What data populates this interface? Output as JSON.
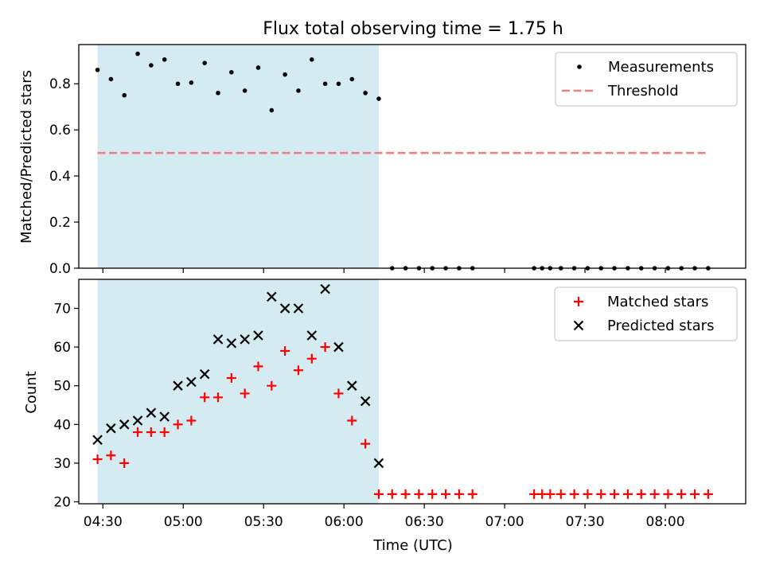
{
  "chart_data": [
    {
      "type": "scatter",
      "title": "Flux total observing time = 1.75 h",
      "xlabel": "",
      "ylabel": "Matched/Predicted stars",
      "ylim": [
        0,
        0.97
      ],
      "yticks": [
        "0.0",
        "0.2",
        "0.4",
        "0.6",
        "0.8"
      ],
      "xlim": [
        "04:21",
        "08:30"
      ],
      "legend_position": "top-right",
      "shaded_interval": [
        "04:28",
        "06:13"
      ],
      "series": [
        {
          "name": "Measurements",
          "style": "dot",
          "color": "#000000",
          "x": [
            "04:28",
            "04:33",
            "04:38",
            "04:43",
            "04:48",
            "04:53",
            "04:58",
            "05:03",
            "05:08",
            "05:13",
            "05:18",
            "05:23",
            "05:28",
            "05:33",
            "05:38",
            "05:43",
            "05:48",
            "05:53",
            "05:58",
            "06:03",
            "06:08",
            "06:13",
            "06:18",
            "06:23",
            "06:28",
            "06:33",
            "06:38",
            "06:43",
            "06:48",
            "07:11",
            "07:14",
            "07:17",
            "07:21",
            "07:26",
            "07:31",
            "07:36",
            "07:41",
            "07:46",
            "07:51",
            "07:56",
            "08:01",
            "08:06",
            "08:11",
            "08:16"
          ],
          "y": [
            0.86,
            0.82,
            0.75,
            0.93,
            0.88,
            0.905,
            0.8,
            0.805,
            0.89,
            0.76,
            0.85,
            0.77,
            0.87,
            0.685,
            0.84,
            0.77,
            0.905,
            0.8,
            0.8,
            0.82,
            0.76,
            0.735,
            0,
            0,
            0,
            0,
            0,
            0,
            0,
            0,
            0,
            0,
            0,
            0,
            0,
            0,
            0,
            0,
            0,
            0,
            0,
            0,
            0,
            0
          ]
        },
        {
          "name": "Threshold",
          "style": "dashed-line",
          "color": "#f08080",
          "x": [
            "04:28",
            "08:16"
          ],
          "y": [
            0.5,
            0.5
          ]
        }
      ]
    },
    {
      "type": "scatter",
      "title": "",
      "xlabel": "Time (UTC)",
      "ylabel": "Count",
      "ylim": [
        19.5,
        77.5
      ],
      "yticks": [
        "20",
        "30",
        "40",
        "50",
        "60",
        "70"
      ],
      "xlim": [
        "04:21",
        "08:30"
      ],
      "xticks": [
        "04:30",
        "05:00",
        "05:30",
        "06:00",
        "06:30",
        "07:00",
        "07:30",
        "08:00"
      ],
      "legend_position": "top-right",
      "shaded_interval": [
        "04:28",
        "06:13"
      ],
      "series": [
        {
          "name": "Matched stars",
          "style": "plus",
          "color": "#ff0000",
          "x": [
            "04:28",
            "04:33",
            "04:38",
            "04:43",
            "04:48",
            "04:53",
            "04:58",
            "05:03",
            "05:08",
            "05:13",
            "05:18",
            "05:23",
            "05:28",
            "05:33",
            "05:38",
            "05:43",
            "05:48",
            "05:53",
            "05:58",
            "06:03",
            "06:08",
            "06:13",
            "06:18",
            "06:23",
            "06:28",
            "06:33",
            "06:38",
            "06:43",
            "06:48",
            "07:11",
            "07:14",
            "07:17",
            "07:21",
            "07:26",
            "07:31",
            "07:36",
            "07:41",
            "07:46",
            "07:51",
            "07:56",
            "08:01",
            "08:06",
            "08:11",
            "08:16"
          ],
          "y": [
            31,
            32,
            30,
            38,
            38,
            38,
            40,
            41,
            47,
            47,
            52,
            48,
            55,
            50,
            59,
            54,
            57,
            60,
            48,
            41,
            35,
            22,
            22,
            22,
            22,
            22,
            22,
            22,
            22,
            22,
            22,
            22,
            22,
            22,
            22,
            22,
            22,
            22,
            22,
            22,
            22,
            22,
            22,
            22
          ]
        },
        {
          "name": "Predicted stars",
          "style": "x",
          "color": "#000000",
          "x": [
            "04:28",
            "04:33",
            "04:38",
            "04:43",
            "04:48",
            "04:53",
            "04:58",
            "05:03",
            "05:08",
            "05:13",
            "05:18",
            "05:23",
            "05:28",
            "05:33",
            "05:38",
            "05:43",
            "05:48",
            "05:53",
            "05:58",
            "06:03",
            "06:08",
            "06:13"
          ],
          "y": [
            36,
            39,
            40,
            41,
            43,
            42,
            50,
            51,
            53,
            62,
            61,
            62,
            63,
            73,
            70,
            70,
            63,
            75,
            60,
            50,
            46,
            30
          ]
        }
      ]
    }
  ],
  "colors": {
    "shade": "#add8e6",
    "threshold": "#f08080",
    "matched": "#ff0000",
    "predicted": "#000000"
  }
}
